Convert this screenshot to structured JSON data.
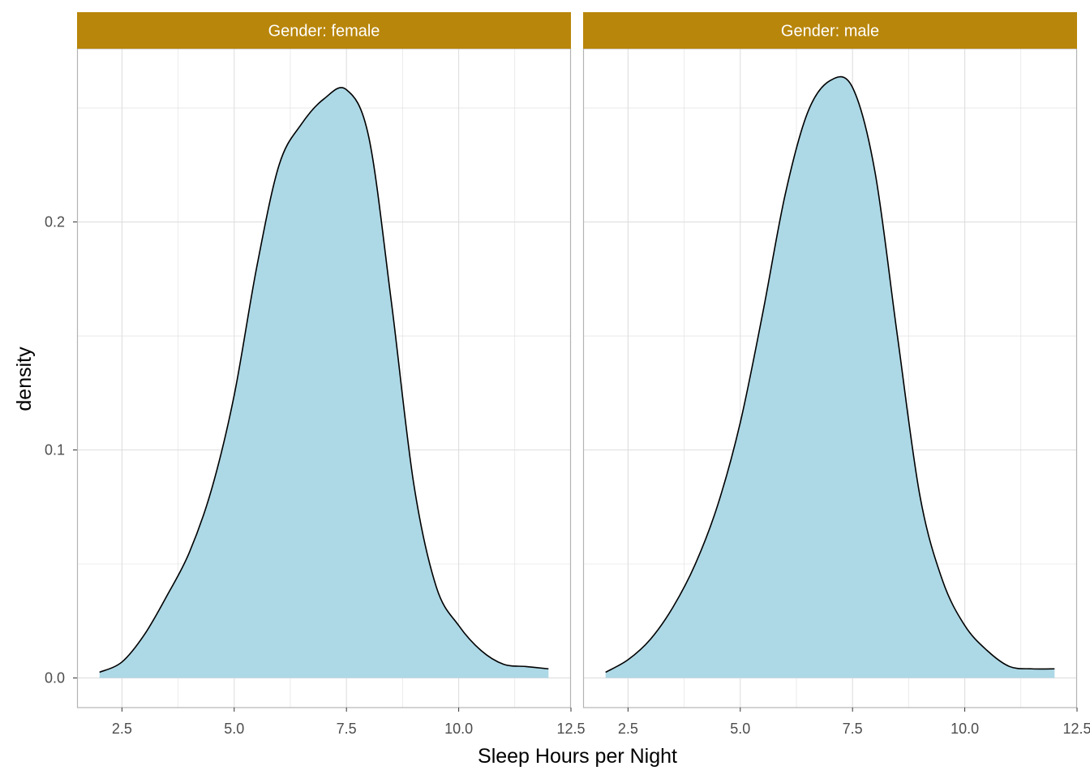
{
  "chart_data": {
    "type": "area",
    "chart_kind": "faceted density plot",
    "xlabel": "Sleep Hours per Night",
    "ylabel": "density",
    "xlim": [
      1.5,
      12.5
    ],
    "ylim": [
      -0.013,
      0.276
    ],
    "x_ticks": [
      2.5,
      5.0,
      7.5,
      10.0,
      12.5
    ],
    "x_tick_labels": [
      "2.5",
      "5.0",
      "7.5",
      "10.0",
      "12.5"
    ],
    "y_ticks": [
      0.0,
      0.1,
      0.2
    ],
    "y_tick_labels": [
      "0.0",
      "0.1",
      "0.2"
    ],
    "grid": true,
    "fill_color": "#ADD8E6",
    "line_color": "#000000",
    "strip_color": "#B8860B",
    "strip_text_color": "#FFFFFF",
    "panel_border_color": "#B3B3B3",
    "grid_color": "#DEDEDE",
    "panels": [
      {
        "strip_label": "Gender: female",
        "x": [
          2.0,
          2.5,
          3.0,
          3.5,
          4.0,
          4.5,
          5.0,
          5.5,
          6.0,
          6.5,
          7.0,
          7.5,
          8.0,
          8.5,
          9.0,
          9.5,
          10.0,
          10.5,
          11.0,
          11.5,
          12.0
        ],
        "y": [
          0.0025,
          0.007,
          0.019,
          0.036,
          0.055,
          0.083,
          0.124,
          0.18,
          0.225,
          0.243,
          0.254,
          0.258,
          0.237,
          0.165,
          0.085,
          0.04,
          0.023,
          0.012,
          0.006,
          0.005,
          0.004
        ]
      },
      {
        "strip_label": "Gender: male",
        "x": [
          2.0,
          2.5,
          3.0,
          3.5,
          4.0,
          4.5,
          5.0,
          5.5,
          6.0,
          6.5,
          7.0,
          7.5,
          8.0,
          8.5,
          9.0,
          9.5,
          10.0,
          10.5,
          11.0,
          11.5,
          12.0
        ],
        "y": [
          0.0025,
          0.008,
          0.017,
          0.031,
          0.05,
          0.076,
          0.112,
          0.16,
          0.212,
          0.248,
          0.262,
          0.259,
          0.222,
          0.15,
          0.08,
          0.043,
          0.023,
          0.012,
          0.005,
          0.004,
          0.004
        ]
      }
    ]
  }
}
